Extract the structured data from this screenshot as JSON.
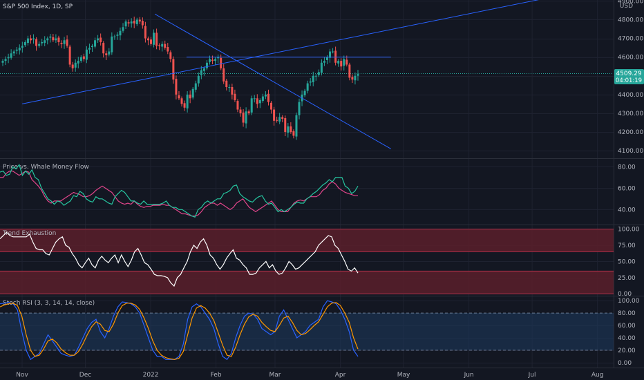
{
  "header": {
    "symbol_title": "S&P 500 Index, 1D, SP",
    "currency": "USD"
  },
  "colors": {
    "background": "#131722",
    "grid": "#1e2230",
    "up": "#26a69a",
    "down": "#ef5350",
    "trendline": "#2962ff",
    "price_badge": "#26a69a",
    "whale_green": "#26c6a0",
    "whale_pink": "#e0458a",
    "trend_line": "#ffffff",
    "zone_fill": "#5a1e2a",
    "zone_border": "#b2304a",
    "stoch_k": "#2962ff",
    "stoch_d": "#ff9800",
    "stoch_band": "#1e3a5f"
  },
  "last_price": {
    "value": "4509.29",
    "countdown": "04:01:19"
  },
  "panes": {
    "price_title": "",
    "whale_title": "Price vs. Whale Money Flow",
    "trend_title": "Trend Exhaustion",
    "stoch_title": "Stoch RSI (3, 3, 14, 14, close)"
  },
  "chart_data": [
    {
      "type": "candlestick",
      "title": "S&P 500 Index, 1D, SP",
      "y_ticks": [
        "4900.00",
        "4800.00",
        "4700.00",
        "4600.00",
        "4500.00",
        "4400.00",
        "4300.00",
        "4200.00",
        "4100.00"
      ],
      "ylim": [
        4060,
        4905
      ],
      "close": [
        4580,
        4590,
        4600,
        4620,
        4630,
        4640,
        4650,
        4660,
        4680,
        4700,
        4690,
        4700,
        4660,
        4670,
        4680,
        4690,
        4700,
        4710,
        4690,
        4700,
        4680,
        4670,
        4690,
        4660,
        4560,
        4540,
        4570,
        4580,
        4600,
        4590,
        4640,
        4650,
        4660,
        4690,
        4700,
        4680,
        4620,
        4610,
        4630,
        4710,
        4710,
        4720,
        4740,
        4760,
        4790,
        4780,
        4790,
        4780,
        4800,
        4790,
        4770,
        4700,
        4690,
        4670,
        4730,
        4660,
        4660,
        4670,
        4650,
        4630,
        4590,
        4480,
        4400,
        4380,
        4350,
        4330,
        4400,
        4380,
        4430,
        4460,
        4500,
        4530,
        4540,
        4570,
        4590,
        4580,
        4590,
        4600,
        4540,
        4470,
        4440,
        4440,
        4400,
        4370,
        4320,
        4300,
        4250,
        4310,
        4300,
        4380,
        4380,
        4350,
        4370,
        4390,
        4400,
        4360,
        4320,
        4260,
        4260,
        4280,
        4270,
        4200,
        4230,
        4200,
        4180,
        4290,
        4360,
        4400,
        4420,
        4460,
        4470,
        4500,
        4500,
        4520,
        4570,
        4580,
        4600,
        4630,
        4630,
        4570,
        4580,
        4550,
        4590,
        4560,
        4490,
        4480,
        4500,
        4510
      ],
      "trendlines": [
        {
          "from": [
            "Nov 1",
            4350
          ],
          "to": [
            "Aug 1",
            4970
          ]
        },
        {
          "from": [
            "Jan 3",
            4830
          ],
          "to": [
            "Apr 25",
            4110
          ]
        },
        {
          "from": [
            "Jan 18",
            4600
          ],
          "to": [
            "Apr 25",
            4600
          ]
        }
      ]
    },
    {
      "type": "line",
      "title": "Price vs. Whale Money Flow",
      "y_ticks": [
        "80.00",
        "60.00",
        "40.00"
      ],
      "ylim": [
        26,
        88
      ],
      "series": [
        {
          "name": "",
          "values": [
            75,
            76,
            72,
            73,
            80,
            78,
            82,
            72,
            76,
            73,
            77,
            70,
            68,
            60,
            55,
            50,
            48,
            45,
            48,
            47,
            44,
            46,
            48,
            53,
            52,
            57,
            55,
            50,
            48,
            47,
            52,
            50,
            50,
            48,
            46,
            45,
            52,
            55,
            58,
            56,
            52,
            48,
            48,
            46,
            45,
            48,
            45,
            45,
            45,
            45,
            45,
            46,
            48,
            44,
            42,
            42,
            40,
            40,
            38,
            36,
            34,
            33,
            40,
            42,
            46,
            48,
            46,
            48,
            50,
            50,
            55,
            56,
            58,
            62,
            63,
            55,
            52,
            50,
            48,
            47,
            50,
            52,
            53,
            48,
            45,
            46,
            42,
            38,
            40,
            38,
            40,
            42,
            45,
            47,
            46,
            46,
            50,
            52,
            55,
            57,
            60,
            63,
            65,
            68,
            66,
            70,
            70,
            70,
            62,
            60,
            55,
            57,
            62
          ]
        },
        {
          "name": "",
          "values": [
            70,
            70,
            74,
            76,
            76,
            74,
            72,
            74,
            76,
            75,
            68,
            65,
            62,
            58,
            52,
            48,
            46,
            48,
            48,
            48,
            50,
            52,
            54,
            56,
            55,
            54,
            52,
            52,
            53,
            55,
            58,
            60,
            62,
            60,
            58,
            56,
            52,
            48,
            46,
            45,
            46,
            45,
            48,
            45,
            43,
            42,
            43,
            43,
            44,
            44,
            44,
            45,
            44,
            44,
            42,
            40,
            38,
            36,
            36,
            35,
            34,
            34,
            35,
            38,
            42,
            44,
            46,
            46,
            44,
            46,
            44,
            42,
            40,
            42,
            46,
            48,
            50,
            46,
            42,
            40,
            38,
            40,
            42,
            44,
            46,
            48,
            44,
            40,
            38,
            38,
            38,
            42,
            46,
            48,
            49,
            48,
            50,
            52,
            52,
            52,
            54,
            58,
            60,
            64,
            66,
            64,
            60,
            58,
            56,
            55,
            54,
            53,
            53
          ]
        }
      ]
    },
    {
      "type": "line",
      "title": "Trend Exhaustion",
      "y_ticks": [
        "100.00",
        "75.00",
        "50.00",
        "25.00",
        "0.00"
      ],
      "ylim": [
        -3,
        107
      ],
      "zones": [
        [
          65,
          100
        ],
        [
          0,
          35
        ]
      ],
      "series": [
        {
          "name": "",
          "values": [
            85,
            90,
            95,
            90,
            88,
            88,
            88,
            88,
            88,
            92,
            80,
            70,
            68,
            68,
            62,
            60,
            70,
            80,
            85,
            88,
            75,
            72,
            62,
            55,
            45,
            40,
            48,
            55,
            45,
            40,
            52,
            58,
            52,
            48,
            55,
            60,
            48,
            60,
            50,
            42,
            52,
            65,
            70,
            60,
            48,
            45,
            38,
            30,
            28,
            28,
            27,
            25,
            17,
            12,
            25,
            30,
            40,
            50,
            65,
            75,
            70,
            80,
            85,
            75,
            60,
            55,
            45,
            38,
            45,
            55,
            62,
            68,
            55,
            52,
            45,
            40,
            30,
            30,
            32,
            40,
            45,
            50,
            40,
            45,
            35,
            30,
            32,
            40,
            50,
            45,
            38,
            40,
            45,
            50,
            55,
            60,
            65,
            75,
            80,
            85,
            90,
            88,
            75,
            70,
            60,
            50,
            38,
            35,
            40,
            32
          ]
        }
      ]
    },
    {
      "type": "line",
      "title": "Stoch RSI (3, 3, 14, 14, close)",
      "y_ticks": [
        "100.00",
        "80.00",
        "60.00",
        "40.00",
        "20.00",
        "0.00"
      ],
      "ylim": [
        -8,
        108
      ],
      "band": [
        20,
        80
      ],
      "x_ticks": [
        "Nov",
        "Dec",
        "2022",
        "Feb",
        "Mar",
        "Apr",
        "May",
        "Jun",
        "Jul",
        "Aug"
      ],
      "series": [
        {
          "name": "",
          "values": [
            95,
            96,
            97,
            95,
            85,
            50,
            20,
            5,
            10,
            15,
            30,
            45,
            35,
            25,
            15,
            12,
            10,
            12,
            25,
            40,
            55,
            65,
            70,
            50,
            40,
            55,
            75,
            90,
            98,
            97,
            95,
            90,
            80,
            60,
            40,
            20,
            10,
            10,
            5,
            5,
            5,
            10,
            30,
            70,
            90,
            95,
            90,
            80,
            70,
            55,
            30,
            10,
            5,
            15,
            40,
            60,
            75,
            80,
            78,
            70,
            55,
            50,
            45,
            50,
            75,
            85,
            70,
            55,
            40,
            45,
            50,
            60,
            65,
            70,
            90,
            100,
            98,
            95,
            85,
            70,
            50,
            20,
            10
          ]
        },
        {
          "name": "",
          "values": [
            90,
            93,
            95,
            96,
            92,
            75,
            45,
            20,
            10,
            12,
            22,
            35,
            38,
            32,
            22,
            16,
            12,
            12,
            18,
            30,
            45,
            58,
            66,
            62,
            52,
            50,
            62,
            80,
            92,
            96,
            96,
            93,
            86,
            72,
            55,
            35,
            20,
            12,
            8,
            6,
            5,
            7,
            18,
            45,
            72,
            88,
            92,
            88,
            80,
            68,
            48,
            28,
            12,
            10,
            25,
            45,
            62,
            74,
            78,
            75,
            65,
            58,
            52,
            50,
            60,
            72,
            75,
            65,
            52,
            45,
            47,
            53,
            60,
            66,
            78,
            90,
            96,
            97,
            92,
            80,
            65,
            40,
            22
          ]
        }
      ]
    }
  ]
}
